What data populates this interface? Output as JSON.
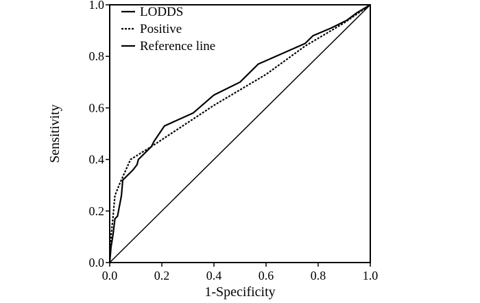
{
  "chart_data": {
    "type": "line",
    "title": "",
    "xlabel": "1-Specificity",
    "ylabel": "Sensitivity",
    "xlim": [
      0,
      1
    ],
    "ylim": [
      0,
      1
    ],
    "xticks": [
      "0.0",
      "0.2",
      "0.4",
      "0.6",
      "0.8",
      "1.0"
    ],
    "yticks": [
      "0.0",
      "0.2",
      "0.4",
      "0.6",
      "0.8",
      "1.0"
    ],
    "grid": false,
    "legend_position": "top-left",
    "series": [
      {
        "name": "LODDS",
        "style": "solid",
        "color": "#000000",
        "x": [
          0,
          0.005,
          0.013,
          0.02,
          0.03,
          0.045,
          0.05,
          0.09,
          0.105,
          0.11,
          0.16,
          0.17,
          0.21,
          0.32,
          0.4,
          0.41,
          0.5,
          0.57,
          0.75,
          0.78,
          0.85,
          0.91,
          0.95,
          1.0
        ],
        "y": [
          0,
          0.06,
          0.11,
          0.17,
          0.18,
          0.26,
          0.32,
          0.36,
          0.38,
          0.4,
          0.45,
          0.47,
          0.53,
          0.58,
          0.65,
          0.655,
          0.7,
          0.77,
          0.85,
          0.88,
          0.91,
          0.94,
          0.97,
          1.0
        ]
      },
      {
        "name": "Positive",
        "style": "dotted",
        "color": "#000000",
        "x": [
          0,
          0.005,
          0.013,
          0.02,
          0.04,
          0.08,
          0.16,
          0.4,
          0.6,
          0.75,
          0.9,
          1.0
        ],
        "y": [
          0,
          0.1,
          0.18,
          0.26,
          0.31,
          0.4,
          0.45,
          0.61,
          0.73,
          0.84,
          0.93,
          1.0
        ]
      },
      {
        "name": "Reference line",
        "style": "solid",
        "color": "#000000",
        "x": [
          0,
          1
        ],
        "y": [
          0,
          1
        ]
      }
    ]
  }
}
